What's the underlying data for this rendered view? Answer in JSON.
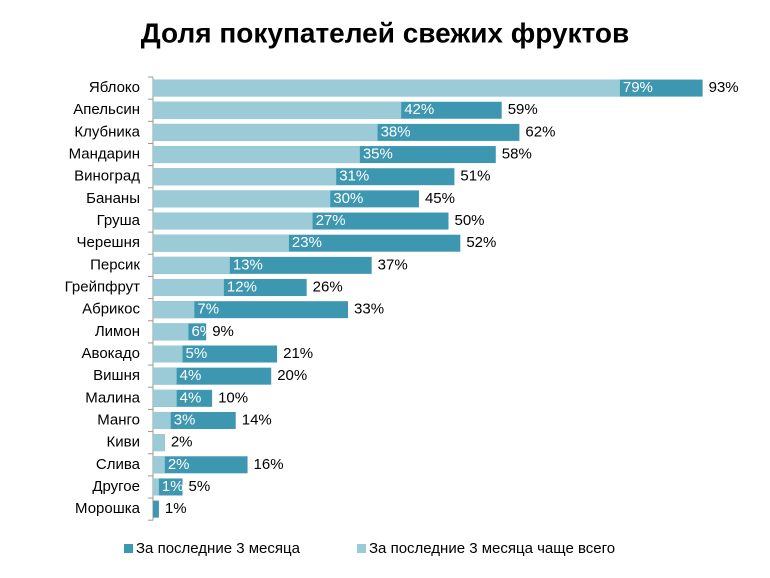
{
  "chart_data": {
    "type": "bar",
    "orientation": "horizontal",
    "overlap": true,
    "title": "Доля покупателей свежих фруктов",
    "categories": [
      "Яблоко",
      "Апельсин",
      "Клубника",
      "Мандарин",
      "Виноград",
      "Бананы",
      "Груша",
      "Черешня",
      "Персик",
      "Грейпфрут",
      "Абрикос",
      "Лимон",
      "Авокадо",
      "Вишня",
      "Малина",
      "Манго",
      "Киви",
      "Слива",
      "Другое",
      "Морошка"
    ],
    "series": [
      {
        "name": "За последние 3 месяца",
        "color": "#3d97b0",
        "values": [
          93,
          59,
          62,
          58,
          51,
          45,
          50,
          52,
          37,
          26,
          33,
          9,
          21,
          20,
          10,
          14,
          2,
          16,
          5,
          1
        ],
        "value_labels": [
          "93%",
          "59%",
          "62%",
          "58%",
          "51%",
          "45%",
          "50%",
          "52%",
          "37%",
          "26%",
          "33%",
          "9%",
          "21%",
          "20%",
          "10%",
          "14%",
          "2%",
          "16%",
          "5%",
          "1%"
        ]
      },
      {
        "name": "За последние 3 месяца чаще всего",
        "color": "#9ccbd8",
        "values": [
          79,
          42,
          38,
          35,
          31,
          30,
          27,
          23,
          13,
          12,
          7,
          6,
          5,
          4,
          4,
          3,
          2,
          2,
          1,
          null
        ],
        "value_labels": [
          "79%",
          "42%",
          "38%",
          "35%",
          "31%",
          "30%",
          "27%",
          "23%",
          "13%",
          "12%",
          "7%",
          "6%",
          "5%",
          "4%",
          "4%",
          "3%",
          null,
          "2%",
          "1%",
          null
        ]
      }
    ],
    "xlim": [
      0,
      100
    ],
    "legend": "bottom"
  }
}
